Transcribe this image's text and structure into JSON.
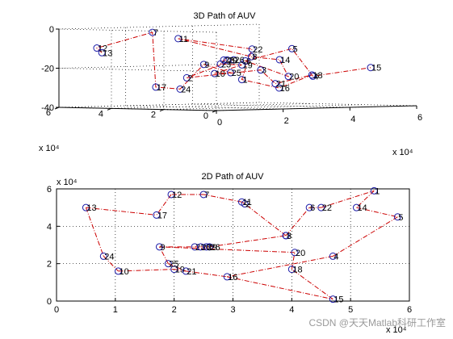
{
  "watermark": "CSDN @天天Matlab科研工作室",
  "chart_data": [
    {
      "type": "line3d",
      "title": "3D Path of AUV",
      "xlim": [
        0,
        60000
      ],
      "ylim": [
        0,
        60000
      ],
      "zlim": [
        -40,
        0
      ],
      "x_ticks": [
        "0",
        "2",
        "4",
        "6"
      ],
      "y_ticks": [
        "0",
        "2",
        "4",
        "6"
      ],
      "z_ticks": [
        "0",
        "-20",
        "-40"
      ],
      "x_exponent": "x 10⁴",
      "y_exponent": "x 10⁴",
      "grid": true,
      "line_style": "dash-dot",
      "line_color": "#cc0000",
      "marker_color": "#1a1aa8",
      "path_order": [
        13,
        12,
        7,
        17,
        24,
        9,
        25,
        10,
        19,
        23,
        28,
        29,
        26,
        2,
        3,
        21,
        18,
        16,
        1,
        22,
        11,
        8,
        14,
        20,
        6,
        5,
        4,
        15
      ],
      "points": [
        {
          "id": 1,
          "x": 54000,
          "y": 59000,
          "z": -28
        },
        {
          "id": 2,
          "x": 32000,
          "y": 52000,
          "z": -26
        },
        {
          "id": 3,
          "x": 29000,
          "y": 20000,
          "z": -21
        },
        {
          "id": 4,
          "x": 47000,
          "y": 23000,
          "z": -25
        },
        {
          "id": 5,
          "x": 58000,
          "y": 45000,
          "z": -12
        },
        {
          "id": 6,
          "x": 48000,
          "y": 50000,
          "z": -18
        },
        {
          "id": 7,
          "x": 17000,
          "y": 46000,
          "z": -2
        },
        {
          "id": 8,
          "x": 38000,
          "y": 35000,
          "z": -15
        },
        {
          "id": 9,
          "x": 19000,
          "y": 29000,
          "z": -18
        },
        {
          "id": 10,
          "x": 12000,
          "y": 16000,
          "z": -22
        },
        {
          "id": 11,
          "x": 31000,
          "y": 54000,
          "z": -6
        },
        {
          "id": 12,
          "x": 9000,
          "y": 57000,
          "z": -10
        },
        {
          "id": 13,
          "x": 5000,
          "y": 50000,
          "z": -12
        },
        {
          "id": 14,
          "x": 48000,
          "y": 37000,
          "z": -17
        },
        {
          "id": 15,
          "x": 47000,
          "y": 1000,
          "z": -20
        },
        {
          "id": 16,
          "x": 29000,
          "y": 13000,
          "z": -30
        },
        {
          "id": 17,
          "x": 18000,
          "y": 46000,
          "z": -30
        },
        {
          "id": 18,
          "x": 42000,
          "y": 17000,
          "z": -24
        },
        {
          "id": 19,
          "x": 21000,
          "y": 17000,
          "z": -18
        },
        {
          "id": 20,
          "x": 42000,
          "y": 26000,
          "z": -25
        },
        {
          "id": 21,
          "x": 31000,
          "y": 17000,
          "z": -28
        },
        {
          "id": 22,
          "x": 50000,
          "y": 50000,
          "z": -12
        },
        {
          "id": 23,
          "x": 24000,
          "y": 29000,
          "z": -18
        },
        {
          "id": 24,
          "x": 8000,
          "y": 24000,
          "z": -30
        },
        {
          "id": 25,
          "x": 20000,
          "y": 20000,
          "z": -22
        },
        {
          "id": 26,
          "x": 28000,
          "y": 29000,
          "z": -16
        },
        {
          "id": 28,
          "x": 25000,
          "y": 29000,
          "z": -16
        },
        {
          "id": 29,
          "x": 26000,
          "y": 29000,
          "z": -16
        }
      ]
    },
    {
      "type": "line",
      "title": "2D Path of AUV",
      "xlim": [
        0,
        60000
      ],
      "ylim": [
        0,
        60000
      ],
      "x_ticks": [
        "0",
        "1",
        "2",
        "3",
        "4",
        "5",
        "6"
      ],
      "y_ticks": [
        "0",
        "2",
        "4",
        "6"
      ],
      "x_exponent": "x 10⁴",
      "y_exponent": "x 10⁴",
      "grid": true,
      "line_style": "dash-dot",
      "line_color": "#cc0000",
      "marker_color": "#1a1aa8",
      "edges": [
        [
          13,
          17
        ],
        [
          13,
          24
        ],
        [
          24,
          10
        ],
        [
          10,
          19
        ],
        [
          19,
          21
        ],
        [
          21,
          16
        ],
        [
          16,
          15
        ],
        [
          15,
          18
        ],
        [
          18,
          20
        ],
        [
          20,
          9
        ],
        [
          9,
          23
        ],
        [
          23,
          28
        ],
        [
          28,
          29
        ],
        [
          29,
          26
        ],
        [
          26,
          3
        ],
        [
          3,
          8
        ],
        [
          8,
          2
        ],
        [
          2,
          11
        ],
        [
          11,
          7
        ],
        [
          7,
          12
        ],
        [
          12,
          17
        ],
        [
          25,
          9
        ],
        [
          25,
          21
        ],
        [
          8,
          6
        ],
        [
          6,
          22
        ],
        [
          22,
          1
        ],
        [
          1,
          14
        ],
        [
          14,
          5
        ],
        [
          5,
          4
        ],
        [
          4,
          16
        ]
      ],
      "points": [
        {
          "id": 1,
          "x": 54000,
          "y": 59000
        },
        {
          "id": 2,
          "x": 32000,
          "y": 52000
        },
        {
          "id": 3,
          "x": 39000,
          "y": 35000
        },
        {
          "id": 4,
          "x": 47000,
          "y": 24000
        },
        {
          "id": 5,
          "x": 58000,
          "y": 45000
        },
        {
          "id": 6,
          "x": 43000,
          "y": 50000
        },
        {
          "id": 7,
          "x": 25000,
          "y": 57000
        },
        {
          "id": 8,
          "x": 39000,
          "y": 35000
        },
        {
          "id": 9,
          "x": 17500,
          "y": 29000
        },
        {
          "id": 10,
          "x": 10500,
          "y": 16000
        },
        {
          "id": 11,
          "x": 31500,
          "y": 53000
        },
        {
          "id": 12,
          "x": 19500,
          "y": 57000
        },
        {
          "id": 13,
          "x": 5000,
          "y": 50000
        },
        {
          "id": 14,
          "x": 51000,
          "y": 50000
        },
        {
          "id": 15,
          "x": 47000,
          "y": 1000
        },
        {
          "id": 16,
          "x": 29000,
          "y": 13000
        },
        {
          "id": 17,
          "x": 17000,
          "y": 46000
        },
        {
          "id": 18,
          "x": 40000,
          "y": 17000
        },
        {
          "id": 19,
          "x": 20000,
          "y": 17000
        },
        {
          "id": 20,
          "x": 40500,
          "y": 26000
        },
        {
          "id": 21,
          "x": 22000,
          "y": 16000
        },
        {
          "id": 22,
          "x": 45000,
          "y": 50000
        },
        {
          "id": 23,
          "x": 23500,
          "y": 29000
        },
        {
          "id": 24,
          "x": 8000,
          "y": 24000
        },
        {
          "id": 25,
          "x": 19000,
          "y": 20000
        },
        {
          "id": 26,
          "x": 26000,
          "y": 29000
        },
        {
          "id": 28,
          "x": 24500,
          "y": 29000
        },
        {
          "id": 29,
          "x": 25500,
          "y": 29000
        }
      ]
    }
  ]
}
